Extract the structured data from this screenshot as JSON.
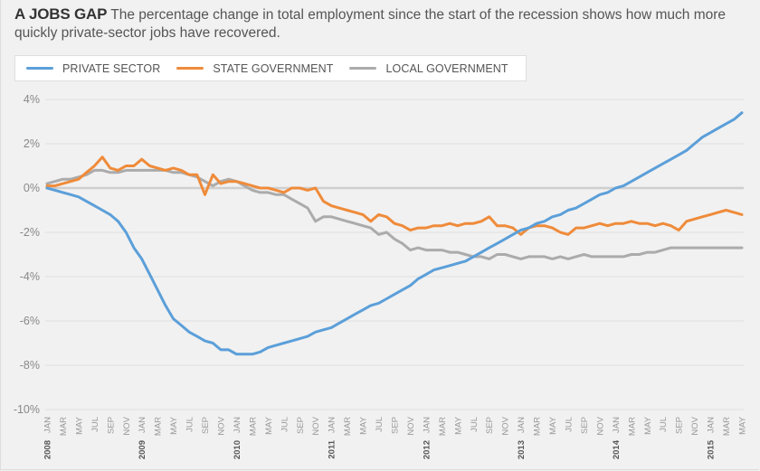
{
  "header": {
    "title": "A JOBS GAP",
    "subtitle": "The percentage change in total employment since the start of the recession shows how much more quickly private-sector jobs have recovered."
  },
  "legend": [
    {
      "label": "PRIVATE SECTOR",
      "color": "#5b9fd9"
    },
    {
      "label": "STATE GOVERNMENT",
      "color": "#ef8b3a"
    },
    {
      "label": "LOCAL GOVERNMENT",
      "color": "#ababab"
    }
  ],
  "chart_data": {
    "type": "line",
    "title": "A JOBS GAP",
    "xlabel": "",
    "ylabel": "",
    "ylim": [
      -10,
      4
    ],
    "yticks": [
      4,
      2,
      0,
      -2,
      -4,
      -6,
      -8,
      -10
    ],
    "ytick_labels": [
      "4%",
      "2%",
      "0%",
      "-2%",
      "-4%",
      "-6%",
      "-8%",
      "-10%"
    ],
    "grid": true,
    "legend_position": "top-left",
    "x_start": "2008-01",
    "x_end": "2015-05",
    "x_tick_month_labels": [
      "JAN",
      "MAR",
      "MAY",
      "JUL",
      "SEP",
      "NOV"
    ],
    "x_year_labels": [
      "2008",
      "2009",
      "2010",
      "2011",
      "2012",
      "2013",
      "2014",
      "2015"
    ],
    "series": [
      {
        "name": "PRIVATE SECTOR",
        "color": "#5b9fd9",
        "values": [
          0.0,
          -0.1,
          -0.2,
          -0.3,
          -0.4,
          -0.6,
          -0.8,
          -1.0,
          -1.2,
          -1.5,
          -2.0,
          -2.7,
          -3.2,
          -3.9,
          -4.6,
          -5.3,
          -5.9,
          -6.2,
          -6.5,
          -6.7,
          -6.9,
          -7.0,
          -7.3,
          -7.3,
          -7.5,
          -7.5,
          -7.5,
          -7.4,
          -7.2,
          -7.1,
          -7.0,
          -6.9,
          -6.8,
          -6.7,
          -6.5,
          -6.4,
          -6.3,
          -6.1,
          -5.9,
          -5.7,
          -5.5,
          -5.3,
          -5.2,
          -5.0,
          -4.8,
          -4.6,
          -4.4,
          -4.1,
          -3.9,
          -3.7,
          -3.6,
          -3.5,
          -3.4,
          -3.3,
          -3.1,
          -2.9,
          -2.7,
          -2.5,
          -2.3,
          -2.1,
          -1.9,
          -1.8,
          -1.6,
          -1.5,
          -1.3,
          -1.2,
          -1.0,
          -0.9,
          -0.7,
          -0.5,
          -0.3,
          -0.2,
          0.0,
          0.1,
          0.3,
          0.5,
          0.7,
          0.9,
          1.1,
          1.3,
          1.5,
          1.7,
          2.0,
          2.3,
          2.5,
          2.7,
          2.9,
          3.1,
          3.4
        ]
      },
      {
        "name": "STATE GOVERNMENT",
        "color": "#ef8b3a",
        "values": [
          0.1,
          0.1,
          0.2,
          0.3,
          0.4,
          0.7,
          1.0,
          1.4,
          0.9,
          0.8,
          1.0,
          1.0,
          1.3,
          1.0,
          0.9,
          0.8,
          0.9,
          0.8,
          0.6,
          0.6,
          -0.3,
          0.6,
          0.2,
          0.3,
          0.3,
          0.2,
          0.1,
          0.0,
          0.0,
          -0.1,
          -0.2,
          0.0,
          0.0,
          -0.1,
          0.0,
          -0.6,
          -0.8,
          -0.9,
          -1.0,
          -1.1,
          -1.2,
          -1.5,
          -1.2,
          -1.3,
          -1.6,
          -1.7,
          -1.9,
          -1.8,
          -1.8,
          -1.7,
          -1.7,
          -1.6,
          -1.7,
          -1.6,
          -1.6,
          -1.5,
          -1.3,
          -1.7,
          -1.7,
          -1.8,
          -2.1,
          -1.8,
          -1.7,
          -1.7,
          -1.8,
          -2.0,
          -2.1,
          -1.8,
          -1.8,
          -1.7,
          -1.6,
          -1.7,
          -1.6,
          -1.6,
          -1.5,
          -1.6,
          -1.6,
          -1.7,
          -1.6,
          -1.7,
          -1.9,
          -1.5,
          -1.4,
          -1.3,
          -1.2,
          -1.1,
          -1.0,
          -1.1,
          -1.2
        ]
      },
      {
        "name": "LOCAL GOVERNMENT",
        "color": "#ababab",
        "values": [
          0.2,
          0.3,
          0.4,
          0.4,
          0.5,
          0.6,
          0.8,
          0.8,
          0.7,
          0.7,
          0.8,
          0.8,
          0.8,
          0.8,
          0.8,
          0.8,
          0.7,
          0.7,
          0.6,
          0.5,
          0.3,
          0.1,
          0.3,
          0.4,
          0.3,
          0.1,
          -0.1,
          -0.2,
          -0.2,
          -0.3,
          -0.3,
          -0.5,
          -0.7,
          -0.9,
          -1.5,
          -1.3,
          -1.3,
          -1.4,
          -1.5,
          -1.6,
          -1.7,
          -1.8,
          -2.1,
          -2.0,
          -2.3,
          -2.5,
          -2.8,
          -2.7,
          -2.8,
          -2.8,
          -2.8,
          -2.9,
          -2.9,
          -3.0,
          -3.1,
          -3.1,
          -3.2,
          -3.0,
          -3.0,
          -3.1,
          -3.2,
          -3.1,
          -3.1,
          -3.1,
          -3.2,
          -3.1,
          -3.2,
          -3.1,
          -3.0,
          -3.1,
          -3.1,
          -3.1,
          -3.1,
          -3.1,
          -3.0,
          -3.0,
          -2.9,
          -2.9,
          -2.8,
          -2.7,
          -2.7,
          -2.7,
          -2.7,
          -2.7,
          -2.7,
          -2.7,
          -2.7,
          -2.7,
          -2.7
        ]
      }
    ]
  }
}
